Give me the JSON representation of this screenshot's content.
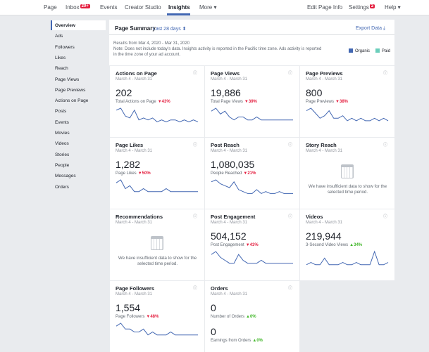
{
  "nav": {
    "items": [
      {
        "label": "Page"
      },
      {
        "label": "Inbox",
        "badge": "20+"
      },
      {
        "label": "Events"
      },
      {
        "label": "Creator Studio"
      },
      {
        "label": "Insights",
        "active": true
      },
      {
        "label": "More ▾"
      },
      {
        "label": "Edit Page Info"
      },
      {
        "label": "Settings",
        "badge": "2"
      },
      {
        "label": "Help ▾"
      }
    ]
  },
  "sidebar": {
    "items": [
      "Overview",
      "Ads",
      "Followers",
      "Likes",
      "Reach",
      "Page Views",
      "Page Previews",
      "Actions on Page",
      "Posts",
      "Events",
      "Movies",
      "Videos",
      "Stories",
      "People",
      "Messages",
      "Orders"
    ]
  },
  "summary": {
    "title": "Page Summary",
    "range": "Last 28 days",
    "export": "Export Data",
    "results": "Results from Mar 4, 2020 - Mar 31, 2020",
    "note": "Note: Does not include today's data. Insights activity is reported in the Pacific time zone. Ads activity is reported in the time zone of your ad account.",
    "legend": [
      {
        "name": "Organic",
        "color": "#4267b2"
      },
      {
        "name": "Paid",
        "color": "#6bcebb"
      }
    ]
  },
  "cards": [
    {
      "title": "Actions on Page",
      "date": "March 4 - March 31",
      "metrics": [
        {
          "value": "202",
          "label": "Total Actions on Page",
          "change": "43%",
          "trend": "down"
        }
      ],
      "sparkline": [
        8,
        9,
        5,
        4,
        8,
        3,
        4,
        3,
        4,
        2,
        3,
        2,
        3,
        3,
        2,
        3,
        2,
        3,
        2
      ]
    },
    {
      "title": "Page Views",
      "date": "March 4 - March 31",
      "metrics": [
        {
          "value": "19,886",
          "label": "Total Page Views",
          "change": "39%",
          "trend": "down"
        }
      ],
      "sparkline": [
        5,
        6,
        4,
        5,
        3,
        2,
        3,
        3,
        2,
        2,
        3,
        2,
        2,
        2,
        2,
        2,
        2,
        2,
        2
      ]
    },
    {
      "title": "Page Previews",
      "date": "March 4 - March 31",
      "metrics": [
        {
          "value": "800",
          "label": "Page Previews",
          "change": "38%",
          "trend": "down"
        }
      ],
      "sparkline": [
        6,
        7,
        5,
        3,
        4,
        6,
        3,
        3,
        4,
        2,
        3,
        2,
        3,
        2,
        2,
        3,
        2,
        3,
        2
      ]
    },
    {
      "title": "Page Likes",
      "date": "March 4 - March 31",
      "metrics": [
        {
          "value": "1,282",
          "label": "Page Likes",
          "change": "50%",
          "trend": "down"
        }
      ],
      "sparkline": [
        5,
        6,
        3,
        4,
        2,
        2,
        3,
        2,
        2,
        2,
        2,
        3,
        2,
        2,
        2,
        2,
        2,
        2,
        2
      ]
    },
    {
      "title": "Post Reach",
      "date": "March 4 - March 31",
      "metrics": [
        {
          "value": "1,080,035",
          "label": "People Reached",
          "change": "21%",
          "trend": "down"
        }
      ],
      "sparkline": [
        8,
        9,
        7,
        6,
        5,
        8,
        4,
        3,
        2,
        2,
        4,
        2,
        3,
        2,
        2,
        3,
        2,
        2,
        2
      ]
    },
    {
      "title": "Story Reach",
      "date": "March 4 - March 31",
      "message": "We have insufficient data to show for the selected time period."
    },
    {
      "title": "Recommendations",
      "date": "March 4 - March 31",
      "message": "We have insufficient data to show for the selected time period."
    },
    {
      "title": "Post Engagement",
      "date": "March 4 - March 31",
      "metrics": [
        {
          "value": "504,152",
          "label": "Post Engagement",
          "change": "43%",
          "trend": "down"
        }
      ],
      "sparkline": [
        5,
        6,
        4,
        3,
        2,
        2,
        5,
        3,
        2,
        2,
        2,
        3,
        2,
        2,
        2,
        2,
        2,
        2,
        2
      ]
    },
    {
      "title": "Videos",
      "date": "March 4 - March 31",
      "metrics": [
        {
          "value": "219,944",
          "label": "3-Second Video Views",
          "change": "34%",
          "trend": "up"
        }
      ],
      "sparkline": [
        2,
        3,
        2,
        2,
        5,
        2,
        2,
        2,
        3,
        2,
        2,
        3,
        2,
        2,
        2,
        8,
        2,
        2,
        3
      ]
    },
    {
      "title": "Page Followers",
      "date": "March 4 - March 31",
      "metrics": [
        {
          "value": "1,554",
          "label": "Page Followers",
          "change": "48%",
          "trend": "down"
        }
      ],
      "sparkline": [
        5,
        6,
        4,
        4,
        3,
        3,
        4,
        2,
        3,
        2,
        2,
        2,
        3,
        2,
        2,
        2,
        2,
        2,
        2
      ]
    },
    {
      "title": "Orders",
      "date": "March 4 - March 31",
      "metrics": [
        {
          "value": "0",
          "label": "Number of Orders",
          "change": "0%",
          "trend": "up"
        },
        {
          "value": "0",
          "label": "Earnings from Orders",
          "change": "0%",
          "trend": "up"
        }
      ]
    }
  ]
}
